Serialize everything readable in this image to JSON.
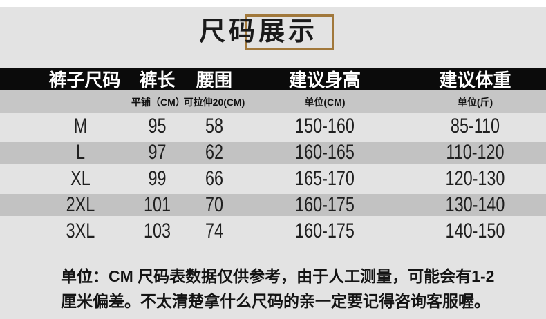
{
  "page_title": "尺码展示",
  "chart_data": {
    "type": "table",
    "title": "尺码展示",
    "columns": [
      {
        "label": "裤子尺码",
        "sub": ""
      },
      {
        "label": "裤长",
        "sub": "平铺（CM）"
      },
      {
        "label": "腰围",
        "sub": "可拉伸20(CM)"
      },
      {
        "label": "建议身高",
        "sub": "单位(CM)"
      },
      {
        "label": "建议体重",
        "sub": "单位(斤)"
      }
    ],
    "rows": [
      {
        "size": "M",
        "length": "95",
        "waist": "58",
        "height": "150-160",
        "weight": "85-110"
      },
      {
        "size": "L",
        "length": "97",
        "waist": "62",
        "height": "160-165",
        "weight": "110-120"
      },
      {
        "size": "XL",
        "length": "99",
        "waist": "66",
        "height": "165-170",
        "weight": "120-130"
      },
      {
        "size": "2XL",
        "length": "101",
        "waist": "70",
        "height": "160-175",
        "weight": "130-140"
      },
      {
        "size": "3XL",
        "length": "103",
        "waist": "74",
        "height": "160-175",
        "weight": "140-150"
      }
    ]
  },
  "footer": {
    "lines": [
      "单位：CM 尺码表数据仅供参考，由于人工测量，可能会有1-2",
      "厘米偏差。不太清楚拿什么尺码的亲一定要记得咨询客服喔。"
    ]
  },
  "colors": {
    "page_background": "#e3e3e3",
    "top_strip": "#ffffff",
    "header_background": "#0b0b0b",
    "header_text": "#ffffff",
    "subheader_background": "#c6c6c6",
    "stripe_dark": "#c2c2c2",
    "title_border": "#a1783b",
    "text": "#1a1a1a"
  }
}
